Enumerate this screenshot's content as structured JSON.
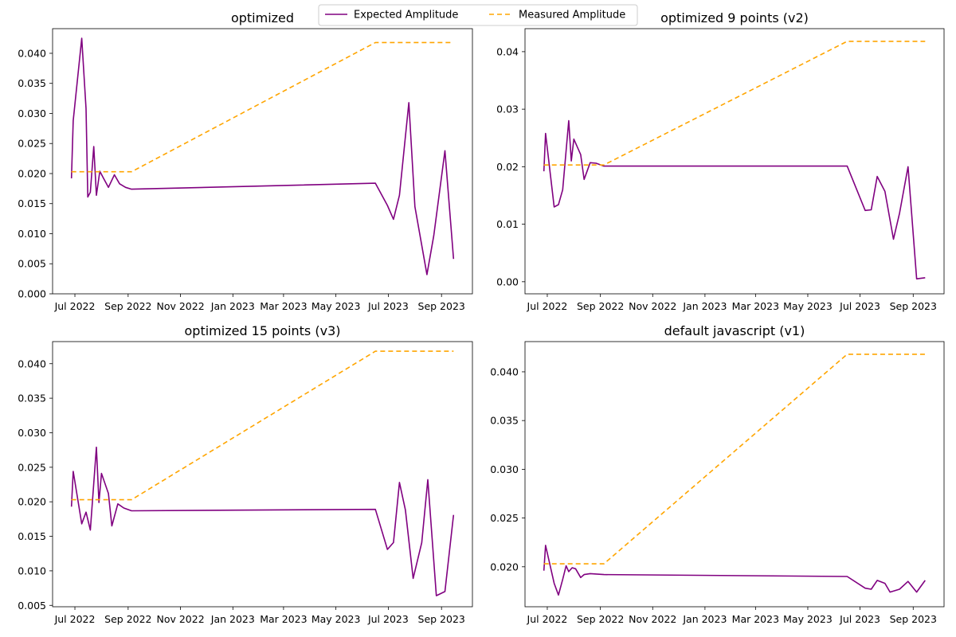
{
  "legend": {
    "entries": [
      {
        "label": "Expected Amplitude",
        "color": "#800080",
        "style": "solid"
      },
      {
        "label": "Measured Amplitude",
        "color": "#FFA500",
        "style": "dashed"
      }
    ],
    "placement": "top-center"
  },
  "chart_data": [
    {
      "type": "line",
      "title": "optimized",
      "xlabel": "",
      "ylabel": "",
      "grid": false,
      "ylim": [
        0,
        0.0441
      ],
      "yticks": [
        0.0,
        0.005,
        0.01,
        0.015,
        0.02,
        0.025,
        0.03,
        0.035,
        0.04
      ],
      "xticks": [
        "Jul 2022",
        "Sep 2022",
        "Nov 2022",
        "Jan 2023",
        "Mar 2023",
        "May 2023",
        "Jul 2023",
        "Sep 2023"
      ],
      "series": [
        {
          "name": "Expected Amplitude",
          "color": "#800080",
          "style": "solid",
          "x": [
            "2022-06-27",
            "2022-06-29",
            "2022-07-09",
            "2022-07-14",
            "2022-07-16",
            "2022-07-19",
            "2022-07-23",
            "2022-07-26",
            "2022-07-30",
            "2022-08-03",
            "2022-08-09",
            "2022-08-16",
            "2022-08-22",
            "2022-08-29",
            "2022-09-05",
            "2023-06-16",
            "2023-06-30",
            "2023-07-07",
            "2023-07-14",
            "2023-07-25",
            "2023-08-01",
            "2023-08-15",
            "2023-08-23",
            "2023-09-05",
            "2023-09-15"
          ],
          "y": [
            0.0192,
            0.0288,
            0.0425,
            0.0308,
            0.0161,
            0.0169,
            0.0245,
            0.0164,
            0.0204,
            0.0193,
            0.0177,
            0.0198,
            0.0183,
            0.0177,
            0.0174,
            0.0184,
            0.0147,
            0.0124,
            0.0164,
            0.0318,
            0.0145,
            0.0032,
            0.0097,
            0.0238,
            0.0058
          ]
        },
        {
          "name": "Measured Amplitude",
          "color": "#FFA500",
          "style": "dashed",
          "x": [
            "2022-06-27",
            "2022-09-05",
            "2023-06-16",
            "2023-09-15"
          ],
          "y": [
            0.0203,
            0.0203,
            0.0418,
            0.0418
          ]
        }
      ]
    },
    {
      "type": "line",
      "title": "optimized 9 points (v2)",
      "xlabel": "",
      "ylabel": "",
      "grid": false,
      "ylim": [
        -0.0021,
        0.044
      ],
      "yticks": [
        0.0,
        0.01,
        0.02,
        0.03,
        0.04
      ],
      "xticks": [
        "Jul 2022",
        "Sep 2022",
        "Nov 2022",
        "Jan 2023",
        "Mar 2023",
        "May 2023",
        "Jul 2023",
        "Sep 2023"
      ],
      "series": [
        {
          "name": "Expected Amplitude",
          "color": "#800080",
          "style": "solid",
          "x": [
            "2022-06-27",
            "2022-06-29",
            "2022-07-09",
            "2022-07-14",
            "2022-07-19",
            "2022-07-26",
            "2022-07-29",
            "2022-08-01",
            "2022-08-09",
            "2022-08-13",
            "2022-08-20",
            "2022-08-27",
            "2022-09-05",
            "2023-06-16",
            "2023-07-07",
            "2023-07-14",
            "2023-07-21",
            "2023-07-30",
            "2023-08-09",
            "2023-08-16",
            "2023-08-26",
            "2023-09-05",
            "2023-09-15"
          ],
          "y": [
            0.0192,
            0.0258,
            0.013,
            0.0134,
            0.016,
            0.028,
            0.021,
            0.0248,
            0.0221,
            0.0178,
            0.0207,
            0.0206,
            0.0201,
            0.0201,
            0.0124,
            0.0125,
            0.0183,
            0.0157,
            0.0074,
            0.0119,
            0.02,
            0.0005,
            0.0007
          ]
        },
        {
          "name": "Measured Amplitude",
          "color": "#FFA500",
          "style": "dashed",
          "x": [
            "2022-06-27",
            "2022-09-05",
            "2023-06-16",
            "2023-09-15"
          ],
          "y": [
            0.0203,
            0.0203,
            0.0418,
            0.0418
          ]
        }
      ]
    },
    {
      "type": "line",
      "title": "optimized 15 points (v3)",
      "xlabel": "",
      "ylabel": "",
      "grid": false,
      "ylim": [
        0.0048,
        0.0432
      ],
      "yticks": [
        0.005,
        0.01,
        0.015,
        0.02,
        0.025,
        0.03,
        0.035,
        0.04
      ],
      "xticks": [
        "Jul 2022",
        "Sep 2022",
        "Nov 2022",
        "Jan 2023",
        "Mar 2023",
        "May 2023",
        "Jul 2023",
        "Sep 2023"
      ],
      "series": [
        {
          "name": "Expected Amplitude",
          "color": "#800080",
          "style": "solid",
          "x": [
            "2022-06-27",
            "2022-06-29",
            "2022-07-09",
            "2022-07-14",
            "2022-07-19",
            "2022-07-26",
            "2022-07-29",
            "2022-08-01",
            "2022-08-09",
            "2022-08-13",
            "2022-08-20",
            "2022-08-27",
            "2022-09-05",
            "2023-06-16",
            "2023-06-30",
            "2023-07-07",
            "2023-07-14",
            "2023-07-21",
            "2023-07-30",
            "2023-08-09",
            "2023-08-16",
            "2023-08-26",
            "2023-09-05",
            "2023-09-15"
          ],
          "y": [
            0.0193,
            0.0244,
            0.0168,
            0.0185,
            0.0159,
            0.0279,
            0.0199,
            0.0241,
            0.0212,
            0.0165,
            0.0197,
            0.0191,
            0.0187,
            0.0189,
            0.0131,
            0.0141,
            0.0228,
            0.0188,
            0.0089,
            0.0141,
            0.0232,
            0.0064,
            0.007,
            0.0181
          ]
        },
        {
          "name": "Measured Amplitude",
          "color": "#FFA500",
          "style": "dashed",
          "x": [
            "2022-06-27",
            "2022-09-05",
            "2023-06-16",
            "2023-09-15"
          ],
          "y": [
            0.0203,
            0.0203,
            0.0418,
            0.0418
          ]
        }
      ]
    },
    {
      "type": "line",
      "title": "default javascript (v1)",
      "xlabel": "",
      "ylabel": "",
      "grid": false,
      "ylim": [
        0.0159,
        0.0431
      ],
      "yticks": [
        0.02,
        0.025,
        0.03,
        0.035,
        0.04
      ],
      "xticks": [
        "Jul 2022",
        "Sep 2022",
        "Nov 2022",
        "Jan 2023",
        "Mar 2023",
        "May 2023",
        "Jul 2023",
        "Sep 2023"
      ],
      "series": [
        {
          "name": "Expected Amplitude",
          "color": "#800080",
          "style": "solid",
          "x": [
            "2022-06-27",
            "2022-06-29",
            "2022-07-09",
            "2022-07-14",
            "2022-07-19",
            "2022-07-23",
            "2022-07-26",
            "2022-07-30",
            "2022-08-03",
            "2022-08-09",
            "2022-08-13",
            "2022-08-20",
            "2022-09-05",
            "2023-06-16",
            "2023-07-07",
            "2023-07-14",
            "2023-07-21",
            "2023-07-30",
            "2023-08-05",
            "2023-08-16",
            "2023-08-26",
            "2023-09-05",
            "2023-09-15"
          ],
          "y": [
            0.0196,
            0.0222,
            0.0183,
            0.0171,
            0.0187,
            0.0201,
            0.0195,
            0.0199,
            0.0198,
            0.0189,
            0.0192,
            0.0193,
            0.0192,
            0.019,
            0.0178,
            0.0177,
            0.0186,
            0.0183,
            0.0174,
            0.0177,
            0.0185,
            0.0174,
            0.0186
          ]
        },
        {
          "name": "Measured Amplitude",
          "color": "#FFA500",
          "style": "dashed",
          "x": [
            "2022-06-27",
            "2022-09-05",
            "2023-06-16",
            "2023-09-15"
          ],
          "y": [
            0.0203,
            0.0203,
            0.0418,
            0.0418
          ]
        }
      ]
    }
  ]
}
